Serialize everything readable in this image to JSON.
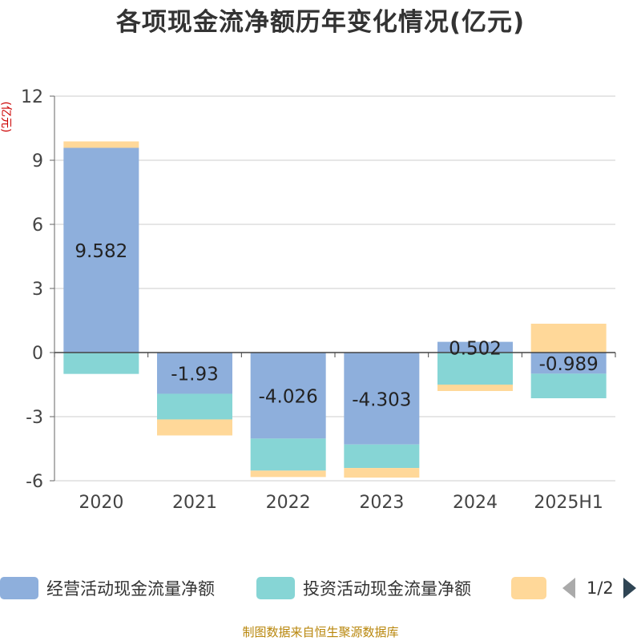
{
  "title": "各项现金流净额历年变化情况(亿元)",
  "chart_data": {
    "type": "bar",
    "stacked": true,
    "y_unit": "(亿元)",
    "ylim": [
      -6,
      12
    ],
    "yticks": [
      -6,
      -3,
      0,
      3,
      6,
      9,
      12
    ],
    "grid": true,
    "legend_position": "bottom",
    "categories": [
      "2020",
      "2021",
      "2022",
      "2023",
      "2024",
      "2025H1"
    ],
    "series": [
      {
        "name": "经营活动现金流量净额",
        "color": "#8eafdc",
        "values": [
          9.582,
          -1.93,
          -4.026,
          -4.303,
          0.502,
          -0.989
        ],
        "labels": [
          "9.582",
          "-1.93",
          "-4.026",
          "-4.303",
          "0.502",
          "-0.989"
        ]
      },
      {
        "name": "投资活动现金流量净额",
        "color": "#86d5d5",
        "values": [
          -1.0,
          -1.2,
          -1.5,
          -1.1,
          -1.5,
          -1.15
        ]
      },
      {
        "name": "",
        "color": "#ffd899",
        "values": [
          0.3,
          -0.75,
          -0.3,
          -0.45,
          -0.3,
          1.35
        ]
      }
    ]
  },
  "legend": {
    "items": [
      "经营活动现金流量净额",
      "投资活动现金流量净额",
      ""
    ],
    "pager": "1/2"
  },
  "source": "制图数据来自恒生聚源数据库"
}
